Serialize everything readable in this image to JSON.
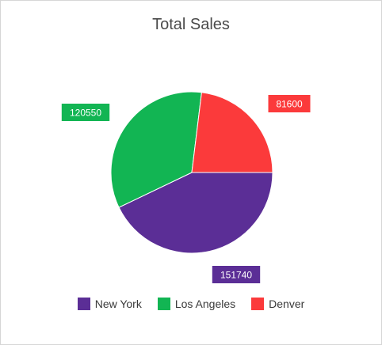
{
  "chart_data": {
    "type": "pie",
    "title": "Total Sales",
    "categories": [
      "New York",
      "Los Angeles",
      "Denver"
    ],
    "values": [
      151740,
      120550,
      81600
    ],
    "data_labels": [
      "151740",
      "120550",
      "81600"
    ],
    "colors": [
      "#5b2e96",
      "#12b553",
      "#fb3a3b"
    ],
    "legend_position": "bottom",
    "start_angle_deg": 0,
    "direction": "clockwise"
  }
}
